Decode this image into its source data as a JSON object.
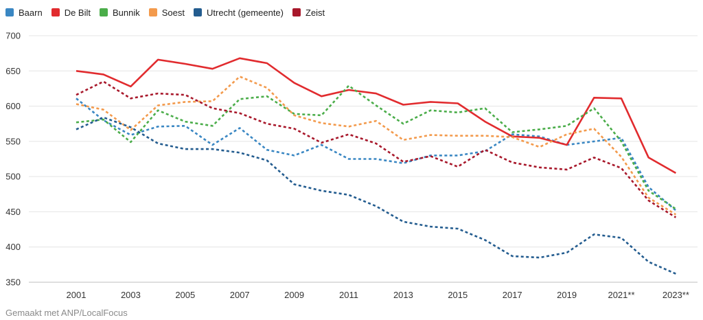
{
  "source": "Gemaakt met ANP/LocalFocus",
  "chart_data": {
    "type": "line",
    "title": "",
    "xlabel": "",
    "ylabel": "",
    "ylim": [
      350,
      700
    ],
    "y_ticks": [
      350,
      400,
      450,
      500,
      550,
      600,
      650,
      700
    ],
    "x_tick_labels": [
      "2001",
      "2003",
      "2005",
      "2007",
      "2009",
      "2011",
      "2013",
      "2015",
      "2017",
      "2019",
      "2021**",
      "2023**"
    ],
    "x": [
      "2001",
      "2002",
      "2003",
      "2004",
      "2005",
      "2006",
      "2007",
      "2008",
      "2009",
      "2010",
      "2011",
      "2012",
      "2013",
      "2014",
      "2015",
      "2016",
      "2017",
      "2018",
      "2019",
      "2020",
      "2021",
      "2022",
      "2023"
    ],
    "grid": "horizontal",
    "legend_position": "top-left",
    "series": [
      {
        "name": "Baarn",
        "color": "#3a87c3",
        "style": "dashed",
        "values": [
          611,
          580,
          559,
          571,
          572,
          545,
          569,
          538,
          530,
          545,
          525,
          525,
          519,
          530,
          530,
          536,
          560,
          557,
          545,
          550,
          555,
          485,
          452
        ]
      },
      {
        "name": "De Bilt",
        "color": "#e12b2e",
        "style": "solid",
        "values": [
          650,
          645,
          628,
          666,
          660,
          653,
          668,
          661,
          633,
          614,
          623,
          618,
          602,
          606,
          604,
          578,
          557,
          555,
          545,
          612,
          611,
          527,
          505
        ]
      },
      {
        "name": "Bunnik",
        "color": "#4bad4a",
        "style": "dashed",
        "values": [
          577,
          581,
          549,
          594,
          578,
          572,
          610,
          614,
          589,
          587,
          629,
          601,
          575,
          594,
          591,
          597,
          563,
          567,
          572,
          597,
          550,
          480,
          454
        ]
      },
      {
        "name": "Soest",
        "color": "#f39a4c",
        "style": "dashed",
        "values": [
          603,
          595,
          566,
          601,
          606,
          607,
          642,
          626,
          587,
          576,
          571,
          579,
          552,
          559,
          558,
          558,
          556,
          542,
          560,
          568,
          528,
          470,
          446
        ]
      },
      {
        "name": "Utrecht (gemeente)",
        "color": "#235c8f",
        "style": "dashed",
        "values": [
          567,
          584,
          570,
          547,
          539,
          539,
          534,
          523,
          489,
          480,
          474,
          458,
          436,
          429,
          426,
          410,
          387,
          385,
          392,
          418,
          413,
          379,
          362
        ]
      },
      {
        "name": "Zeist",
        "color": "#a8182b",
        "style": "dashed",
        "values": [
          616,
          635,
          611,
          618,
          616,
          597,
          590,
          575,
          568,
          548,
          560,
          547,
          521,
          529,
          514,
          538,
          520,
          513,
          510,
          527,
          512,
          466,
          442
        ]
      }
    ]
  }
}
